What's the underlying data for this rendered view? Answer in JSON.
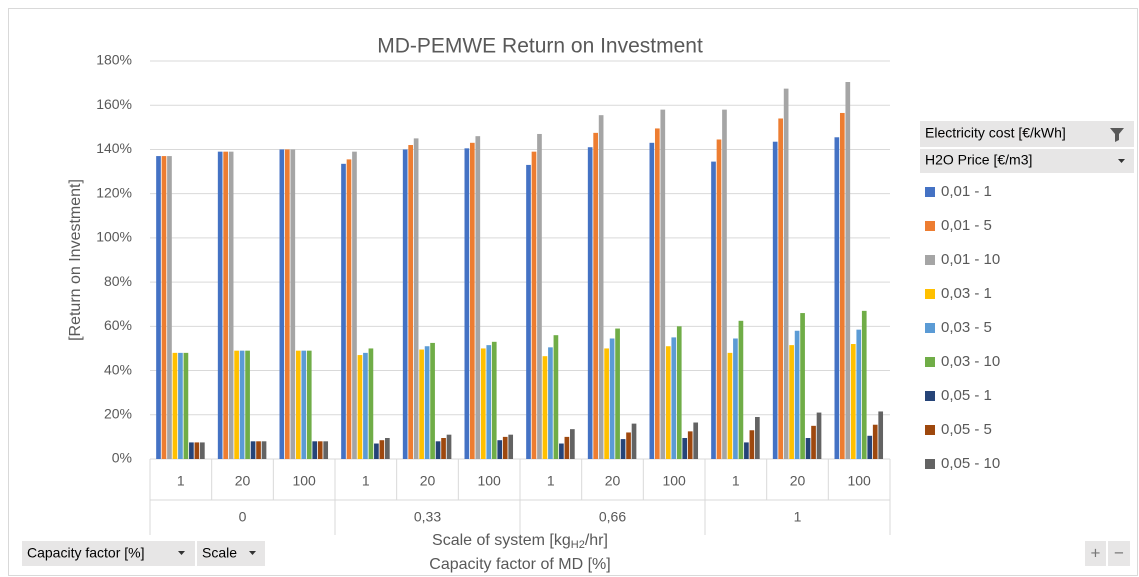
{
  "chart_data": {
    "type": "bar",
    "title": "MD-PEMWE Return on Investment",
    "ylabel": "[Return on Investment]",
    "xlabel": [
      "Scale of system [kg",
      "H2",
      "/hr]"
    ],
    "xlabel2": "Capacity factor of MD [%]",
    "groups": [
      {
        "label": "0",
        "categories": [
          "1",
          "20",
          "100"
        ]
      },
      {
        "label": "0,33",
        "categories": [
          "1",
          "20",
          "100"
        ]
      },
      {
        "label": "0,66",
        "categories": [
          "1",
          "20",
          "100"
        ]
      },
      {
        "label": "1",
        "categories": [
          "1",
          "20",
          "100"
        ]
      }
    ],
    "ylim": [
      0,
      180
    ],
    "yticks": [
      {
        "value": 0,
        "label": "0%"
      },
      {
        "value": 20,
        "label": "20%"
      },
      {
        "value": 40,
        "label": "40%"
      },
      {
        "value": 60,
        "label": "60%"
      },
      {
        "value": 80,
        "label": "80%"
      },
      {
        "value": 100,
        "label": "100%"
      },
      {
        "value": 120,
        "label": "120%"
      },
      {
        "value": 140,
        "label": "140%"
      },
      {
        "value": 160,
        "label": "160%"
      },
      {
        "value": 180,
        "label": "180%"
      }
    ],
    "grid": true,
    "legend_headers": [
      "Electricity cost [€/kWh]",
      "H2O Price [€/m3]"
    ],
    "series": [
      {
        "name": "0,01 - 1",
        "color": "#4472c4",
        "values": [
          137,
          139,
          140,
          133.5,
          140,
          140.5,
          133,
          141,
          143,
          134.5,
          143.5,
          145.5
        ]
      },
      {
        "name": "0,01 - 5",
        "color": "#ed7d31",
        "values": [
          137,
          139,
          140,
          135.5,
          142,
          143,
          139,
          147.5,
          149.5,
          144.5,
          154,
          156.5
        ]
      },
      {
        "name": "0,01 - 10",
        "color": "#a5a5a5",
        "values": [
          137,
          139,
          140,
          139,
          145,
          146,
          147,
          155.5,
          158,
          158,
          167.5,
          170.5
        ]
      },
      {
        "name": "0,03 - 1",
        "color": "#ffc000",
        "values": [
          48,
          49,
          49,
          47,
          49.5,
          50,
          46.5,
          50,
          51,
          48,
          51.5,
          52
        ]
      },
      {
        "name": "0,03 - 5",
        "color": "#5b9bd5",
        "values": [
          48,
          49,
          49,
          48,
          51,
          51.5,
          50.5,
          54.5,
          55,
          54.5,
          58,
          58.5
        ]
      },
      {
        "name": "0,03 - 10",
        "color": "#70ad47",
        "values": [
          48,
          49,
          49,
          50,
          52.5,
          53,
          56,
          59,
          60,
          62.5,
          66,
          67
        ]
      },
      {
        "name": "0,05 - 1",
        "color": "#264478",
        "values": [
          7.5,
          8,
          8,
          7,
          8,
          8.5,
          7,
          9,
          9.5,
          7.5,
          9.5,
          10.5
        ]
      },
      {
        "name": "0,05 - 5",
        "color": "#9e480e",
        "values": [
          7.5,
          8,
          8,
          8.5,
          9.5,
          10,
          10,
          12,
          12.5,
          13,
          15,
          15.5
        ]
      },
      {
        "name": "0,05 - 10",
        "color": "#636363",
        "values": [
          7.5,
          8,
          8,
          9.5,
          11,
          11,
          13.5,
          16,
          16.5,
          19,
          21,
          21.5
        ]
      }
    ]
  },
  "pivot_buttons": [
    "Capacity factor [%]",
    "Scale"
  ],
  "zoom_buttons": [
    "+",
    "−"
  ]
}
